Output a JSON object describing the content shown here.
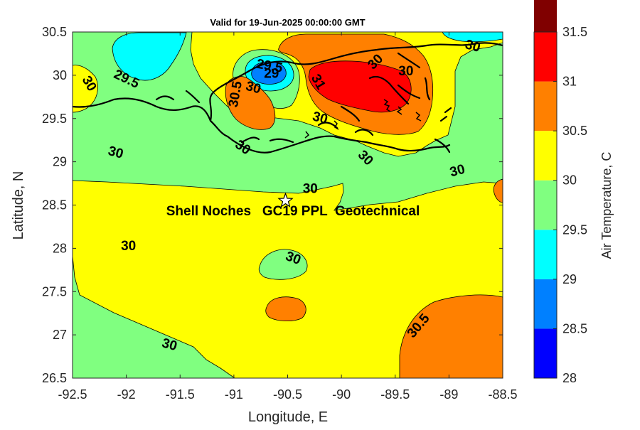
{
  "title": "Valid for 19-Jun-2025 00:00:00 GMT",
  "x_axis": {
    "label": "Longitude, E",
    "range": [
      -92.5,
      -88.5
    ],
    "ticks": [
      "-92.5",
      "-92",
      "-91.5",
      "-91",
      "-90.5",
      "-90",
      "-89.5",
      "-89",
      "-88.5"
    ]
  },
  "y_axis": {
    "label": "Latitude, N",
    "range": [
      26.5,
      30.5
    ],
    "ticks": [
      "26.5",
      "27",
      "27.5",
      "28",
      "28.5",
      "29",
      "29.5",
      "30",
      "30.5"
    ]
  },
  "colorbar": {
    "label": "Air Temperature, C",
    "range": [
      28,
      31.5
    ],
    "ticks": [
      "28",
      "28.5",
      "29",
      "29.5",
      "30",
      "30.5",
      "31",
      "31.5"
    ],
    "colors": [
      "#0000ff",
      "#0080ff",
      "#00ffff",
      "#80ff80",
      "#ffff00",
      "#ff8000",
      "#ff0000",
      "#800000"
    ]
  },
  "site": {
    "name": "Shell Noches   GC19 PPL  Geotechnical",
    "lon": -90.52,
    "lat": 28.55,
    "marker": "white-star-icon"
  },
  "contour_labels": [
    {
      "text": "29.5",
      "lon": -92.0,
      "lat": 29.95,
      "rot": 25
    },
    {
      "text": "30",
      "lon": -92.35,
      "lat": 29.9,
      "rot": 60
    },
    {
      "text": "30.5",
      "lon": -90.98,
      "lat": 29.78,
      "rot": -80
    },
    {
      "text": "29.5",
      "lon": -90.67,
      "lat": 30.1,
      "rot": 10
    },
    {
      "text": "29",
      "lon": -90.65,
      "lat": 30.01,
      "rot": 0
    },
    {
      "text": "30",
      "lon": -90.82,
      "lat": 29.85,
      "rot": 15
    },
    {
      "text": "31",
      "lon": -90.22,
      "lat": 29.92,
      "rot": 60
    },
    {
      "text": "30",
      "lon": -89.68,
      "lat": 30.15,
      "rot": -45
    },
    {
      "text": "30",
      "lon": -89.4,
      "lat": 30.04,
      "rot": 0
    },
    {
      "text": "30",
      "lon": -88.78,
      "lat": 30.33,
      "rot": 15
    },
    {
      "text": "30",
      "lon": -90.2,
      "lat": 29.5,
      "rot": 15
    },
    {
      "text": "30",
      "lon": -90.92,
      "lat": 29.16,
      "rot": 35
    },
    {
      "text": "30",
      "lon": -92.1,
      "lat": 29.1,
      "rot": 15
    },
    {
      "text": "30",
      "lon": -89.78,
      "lat": 29.04,
      "rot": 45
    },
    {
      "text": "30",
      "lon": -88.92,
      "lat": 28.89,
      "rot": -15
    },
    {
      "text": "30",
      "lon": -90.29,
      "lat": 28.68,
      "rot": 0
    },
    {
      "text": "30",
      "lon": -91.98,
      "lat": 28.02,
      "rot": 0
    },
    {
      "text": "30",
      "lon": -90.45,
      "lat": 27.88,
      "rot": 20
    },
    {
      "text": "30",
      "lon": -91.6,
      "lat": 26.88,
      "rot": 15
    },
    {
      "text": "30.5",
      "lon": -89.28,
      "lat": 27.1,
      "rot": -50
    }
  ]
}
